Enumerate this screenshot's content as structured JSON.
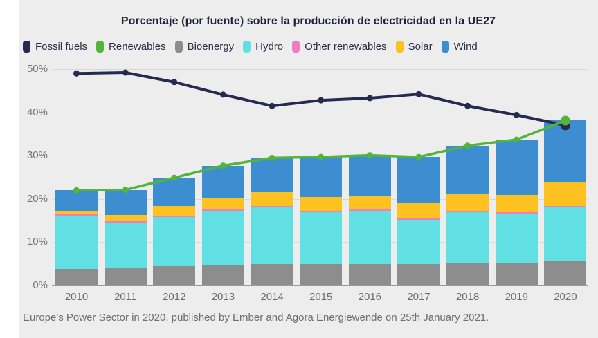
{
  "title": "Porcentaje (por fuente) sobre la producción de electricidad en la UE27",
  "footer": "Europe's Power Sector in 2020, published by Ember and Agora Energiewende on 25th January 2021.",
  "colors": {
    "background": "#ededee",
    "fossil": "#262a4e",
    "renewables": "#52b43c",
    "bioenergy": "#8d8d8d",
    "hydro": "#61e0e3",
    "other_renewables": "#f17cc0",
    "solar": "#fdc21f",
    "wind": "#3c8ed0",
    "gridline": "#d9d9d9",
    "axis_text": "#757575"
  },
  "legend": [
    {
      "label": "Fossil fuels",
      "color": "#262a4e"
    },
    {
      "label": "Renewables",
      "color": "#52b43c"
    },
    {
      "label": "Bioenergy",
      "color": "#8d8d8d"
    },
    {
      "label": "Hydro",
      "color": "#61e0e3"
    },
    {
      "label": "Other renewables",
      "color": "#f17cc0"
    },
    {
      "label": "Solar",
      "color": "#fdc21f"
    },
    {
      "label": "Wind",
      "color": "#3c8ed0"
    }
  ],
  "chart_data": {
    "type": "bar",
    "subtype": "stacked-bars-with-line-overlays",
    "title": "Porcentaje (por fuente) sobre la producción de electricidad en la UE27",
    "categories": [
      "2010",
      "2011",
      "2012",
      "2013",
      "2014",
      "2015",
      "2016",
      "2017",
      "2018",
      "2019",
      "2020"
    ],
    "stack_series": [
      {
        "name": "Bioenergy",
        "color": "#8d8d8d",
        "values": [
          3.8,
          4.0,
          4.5,
          4.8,
          5.0,
          5.0,
          5.0,
          5.0,
          5.3,
          5.3,
          5.6
        ]
      },
      {
        "name": "Hydro",
        "color": "#61e0e3",
        "values": [
          12.4,
          10.6,
          11.3,
          12.5,
          13.1,
          12.0,
          12.2,
          10.2,
          11.7,
          11.3,
          12.5
        ]
      },
      {
        "name": "Other renewables",
        "color": "#f17cc0",
        "values": [
          0.3,
          0.3,
          0.3,
          0.3,
          0.3,
          0.3,
          0.3,
          0.3,
          0.3,
          0.3,
          0.3
        ]
      },
      {
        "name": "Solar",
        "color": "#fdc21f",
        "values": [
          0.7,
          1.4,
          2.3,
          2.6,
          3.1,
          3.2,
          3.2,
          3.6,
          4.0,
          4.1,
          5.4
        ]
      },
      {
        "name": "Wind",
        "color": "#3c8ed0",
        "values": [
          4.8,
          5.8,
          6.5,
          7.5,
          8.0,
          9.2,
          9.4,
          10.6,
          11.0,
          12.7,
          14.3
        ]
      }
    ],
    "line_series": [
      {
        "name": "Fossil fuels",
        "color": "#262a4e",
        "stroke_width": 4,
        "values": [
          49,
          49.2,
          47,
          44.1,
          41.5,
          42.8,
          43.3,
          44.2,
          41.5,
          39.4,
          37
        ]
      },
      {
        "name": "Renewables",
        "color": "#52b43c",
        "stroke_width": 3.5,
        "values": [
          22,
          22.1,
          24.9,
          27.7,
          29.5,
          29.7,
          30.1,
          29.7,
          32.3,
          33.7,
          38.1
        ]
      }
    ],
    "xlabel": "",
    "ylabel": "",
    "y_ticks": [
      0,
      10,
      20,
      30,
      40,
      50
    ],
    "y_tick_suffix": "%",
    "ylim": [
      0,
      51.5
    ],
    "grid": true,
    "legend_position": "top-left"
  }
}
